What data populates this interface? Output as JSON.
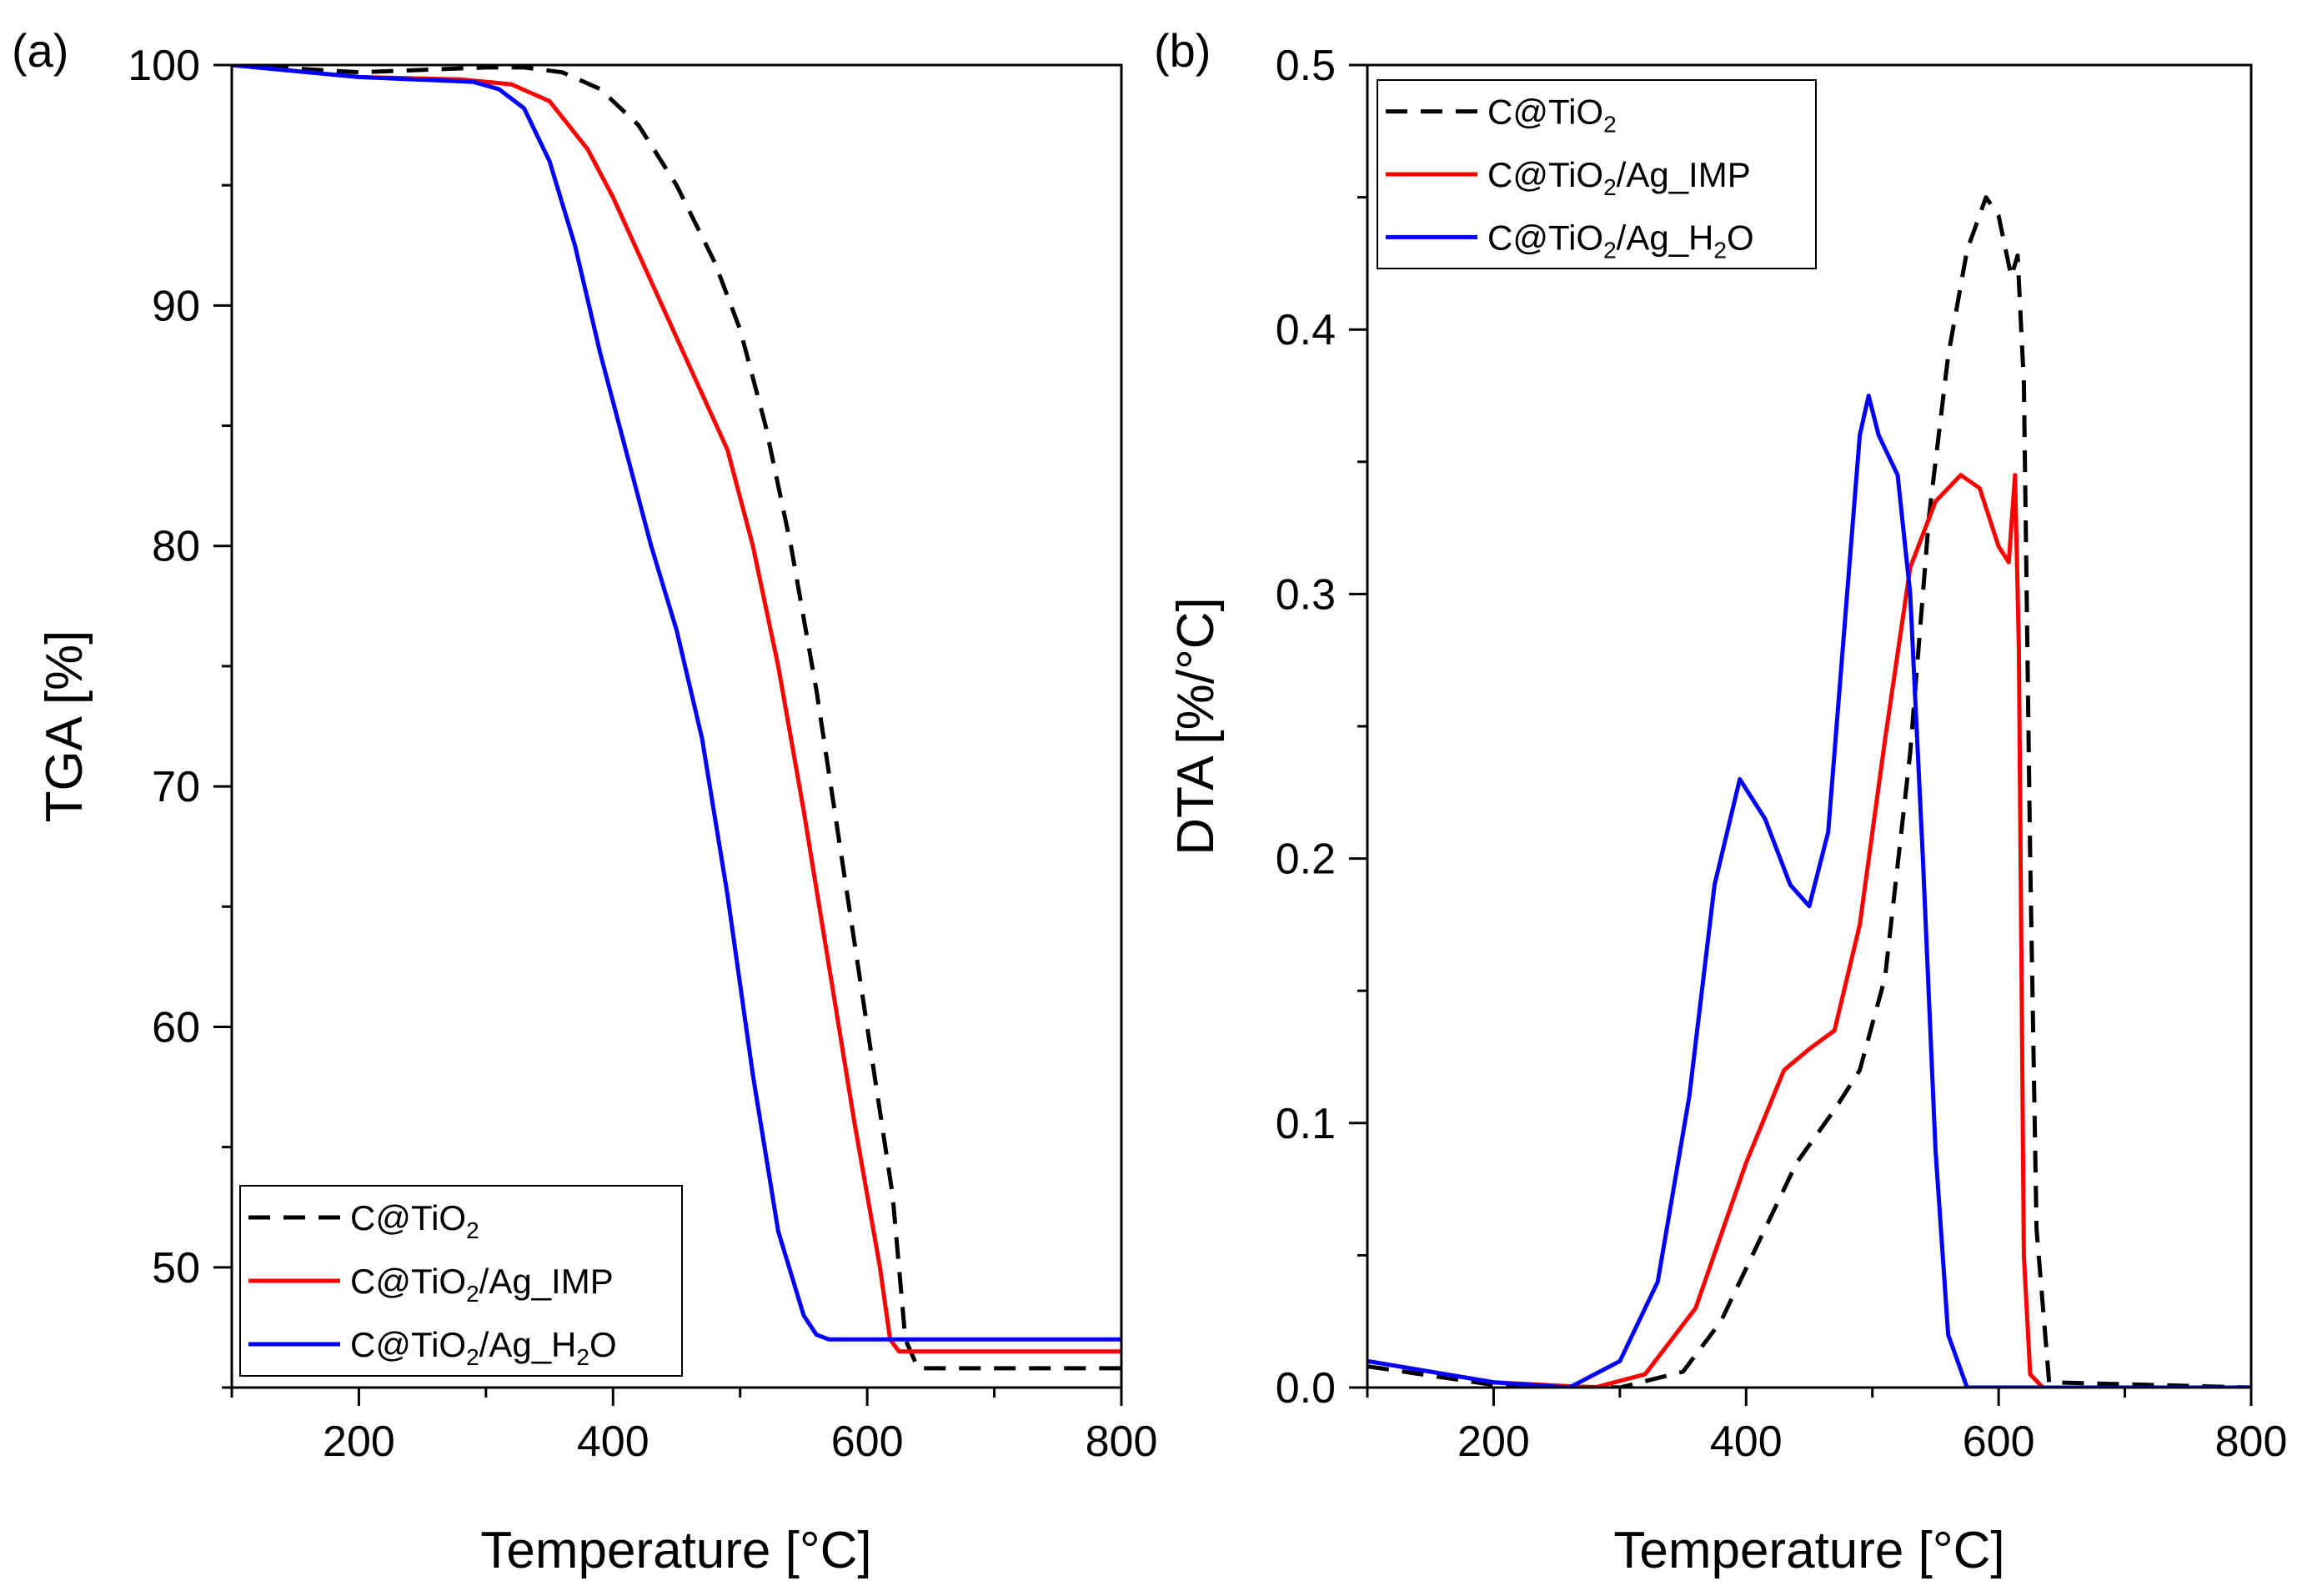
{
  "chart_data": [
    {
      "panel_label": "(a)",
      "type": "line",
      "xlabel": "Temperature [°C]",
      "ylabel": "TGA [%]",
      "xlim": [
        100,
        800
      ],
      "ylim": [
        45,
        100
      ],
      "xticks": [
        "200",
        "400",
        "600",
        "800"
      ],
      "yticks": [
        "50",
        "60",
        "70",
        "80",
        "90",
        "100"
      ],
      "legend_position": "bottom-left",
      "series": [
        {
          "name": "C@TiO2",
          "legend": {
            "main": "C@TiO",
            "sub": "2",
            "rest": ""
          },
          "color": "#000000",
          "dash": "dashed",
          "x": [
            100,
            200,
            300,
            330,
            360,
            390,
            420,
            450,
            480,
            500,
            520,
            540,
            560,
            580,
            600,
            620,
            630,
            640,
            800
          ],
          "y": [
            100,
            99.7,
            99.9,
            99.9,
            99.7,
            99.0,
            97.5,
            95.0,
            91.8,
            89.0,
            85.0,
            80.0,
            74.0,
            67.0,
            60.0,
            53.0,
            47.0,
            45.8,
            45.8
          ]
        },
        {
          "name": "C@TiO2/Ag_IMP",
          "legend": {
            "main": "C@TiO",
            "sub": "2",
            "rest": "/Ag_IMP"
          },
          "color": "#ff0000",
          "dash": "solid",
          "x": [
            100,
            200,
            280,
            320,
            350,
            380,
            400,
            430,
            460,
            490,
            510,
            530,
            550,
            570,
            590,
            610,
            618,
            625,
            800
          ],
          "y": [
            100,
            99.5,
            99.4,
            99.2,
            98.5,
            96.5,
            94.5,
            91.0,
            87.5,
            84.0,
            80.0,
            75.0,
            69.0,
            62.5,
            56.0,
            50.0,
            47.0,
            46.5,
            46.5
          ]
        },
        {
          "name": "C@TiO2/Ag_H2O",
          "legend": {
            "main": "C@TiO",
            "sub": "2",
            "rest": "/Ag_H",
            "sub2": "2",
            "rest2": "O"
          },
          "color": "#0000ff",
          "dash": "solid",
          "x": [
            100,
            200,
            290,
            310,
            330,
            350,
            370,
            390,
            410,
            430,
            450,
            470,
            490,
            510,
            530,
            550,
            560,
            570,
            600,
            800
          ],
          "y": [
            100,
            99.5,
            99.3,
            99.0,
            98.2,
            96.0,
            92.5,
            88.0,
            84.0,
            80.0,
            76.5,
            72.0,
            65.5,
            58.0,
            51.5,
            48.0,
            47.2,
            47.0,
            47.0,
            47.0
          ]
        }
      ]
    },
    {
      "panel_label": "(b)",
      "type": "line",
      "xlabel": "Temperature [°C]",
      "ylabel": "DTA [%/°C]",
      "xlim": [
        100,
        800
      ],
      "ylim": [
        0,
        0.5
      ],
      "xticks": [
        "200",
        "400",
        "600",
        "800"
      ],
      "yticks": [
        "0.0",
        "0.1",
        "0.2",
        "0.3",
        "0.4",
        "0.5"
      ],
      "legend_position": "top-left",
      "series": [
        {
          "name": "C@TiO2",
          "legend": {
            "main": "C@TiO",
            "sub": "2",
            "rest": ""
          },
          "color": "#000000",
          "dash": "dashed",
          "x": [
            100,
            200,
            300,
            350,
            380,
            410,
            440,
            470,
            490,
            510,
            530,
            545,
            560,
            575,
            590,
            600,
            610,
            615,
            620,
            625,
            630,
            640,
            800
          ],
          "y": [
            0.008,
            0.001,
            0.0,
            0.006,
            0.025,
            0.055,
            0.085,
            0.105,
            0.12,
            0.155,
            0.24,
            0.33,
            0.39,
            0.43,
            0.45,
            0.443,
            0.42,
            0.428,
            0.38,
            0.2,
            0.06,
            0.002,
            0.0
          ]
        },
        {
          "name": "C@TiO2/Ag_IMP",
          "legend": {
            "main": "C@TiO",
            "sub": "2",
            "rest": "/Ag_IMP"
          },
          "color": "#ff0000",
          "dash": "solid",
          "x": [
            100,
            200,
            280,
            320,
            360,
            400,
            430,
            450,
            470,
            490,
            510,
            530,
            550,
            570,
            585,
            600,
            608,
            613,
            616,
            620,
            625,
            635,
            800
          ],
          "y": [
            0.01,
            0.002,
            0.0,
            0.005,
            0.03,
            0.085,
            0.12,
            0.128,
            0.135,
            0.175,
            0.245,
            0.31,
            0.335,
            0.345,
            0.34,
            0.318,
            0.312,
            0.345,
            0.28,
            0.05,
            0.005,
            0.0,
            0.0
          ]
        },
        {
          "name": "C@TiO2/Ag_H2O",
          "legend": {
            "main": "C@TiO",
            "sub": "2",
            "rest": "/Ag_H",
            "sub2": "2",
            "rest2": "O"
          },
          "color": "#0000ff",
          "dash": "solid",
          "x": [
            100,
            200,
            260,
            300,
            330,
            355,
            375,
            395,
            415,
            435,
            450,
            465,
            480,
            490,
            497,
            505,
            520,
            530,
            540,
            550,
            560,
            575,
            600,
            800
          ],
          "y": [
            0.01,
            0.002,
            0.0,
            0.01,
            0.04,
            0.11,
            0.19,
            0.23,
            0.215,
            0.19,
            0.182,
            0.21,
            0.3,
            0.36,
            0.375,
            0.36,
            0.345,
            0.3,
            0.2,
            0.09,
            0.02,
            0.0,
            0.0,
            0.0
          ]
        }
      ]
    }
  ]
}
